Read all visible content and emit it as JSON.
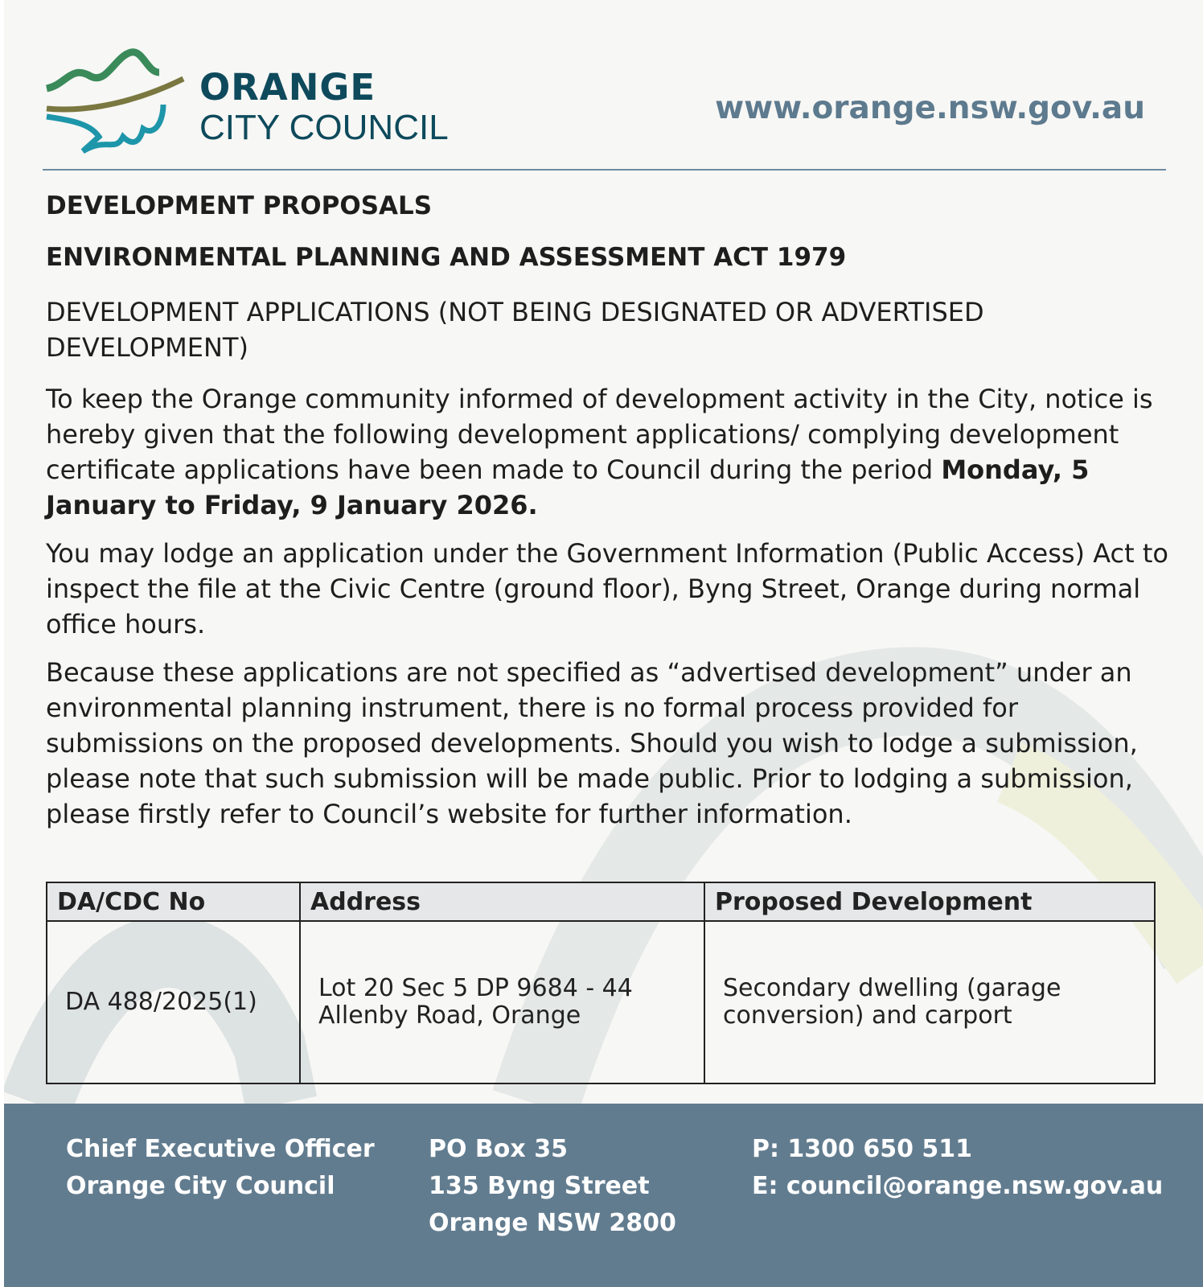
{
  "header": {
    "logo_line1": "ORANGE",
    "logo_line2": "CITY COUNCIL",
    "website": "www.orange.nsw.gov.au"
  },
  "notice": {
    "heading": "DEVELOPMENT PROPOSALS",
    "act": "ENVIRONMENTAL PLANNING AND ASSESSMENT ACT 1979",
    "subheading": "DEVELOPMENT APPLICATIONS (NOT BEING DESIGNATED OR ADVERTISED DEVELOPMENT)",
    "para1": "To keep the Orange community informed of development activity in the City, notice is hereby given that the following development applications/ complying development certificate applications have been made to Council during the period ",
    "period": "Monday, 5 January to Friday, 9 January 2026.",
    "para2": "You may lodge an application under the Government Information (Public Access) Act to inspect the file at the Civic Centre (ground floor), Byng Street, Orange during normal office hours.",
    "para3": "Because these applications are not specified as “advertised development” under an environmental planning instrument, there is no formal process provided for submissions on the proposed developments. Should you wish to lodge a submission, please note that such submission will be made public. Prior to lodging a submission, please firstly refer to Council’s website for further information."
  },
  "table": {
    "headers": [
      "DA/CDC No",
      "Address",
      "Proposed Development"
    ],
    "rows": [
      [
        "DA 488/2025(1)",
        "Lot 20 Sec 5 DP 9684 - 44 Allenby Road, Orange",
        "Secondary dwelling (garage conversion) and carport"
      ]
    ]
  },
  "footer": {
    "col1": [
      "Chief Executive Officer",
      "Orange City Council"
    ],
    "col2": [
      "PO Box 35",
      "135 Byng Street",
      "Orange NSW 2800"
    ],
    "col3": [
      "P: 1300 650 511",
      "E: council@orange.nsw.gov.au"
    ]
  },
  "colors": {
    "brand_dark": "#0e4a5c",
    "footer_bg": "#627c8f",
    "url": "#5d7a8e"
  }
}
